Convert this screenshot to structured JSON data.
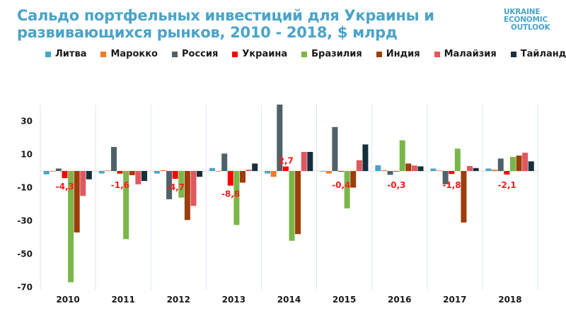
{
  "header": {
    "title_line1": "Сальдо портфельных инвестиций для Украины и",
    "title_line2": "развивающихся рынков, 2010 - 2018, $ млрд",
    "logo_lines": [
      "UKRAINE",
      "ECONOMIC",
      "OUTLOOK"
    ]
  },
  "chart_data": {
    "type": "bar",
    "title": "Сальдо портфельных инвестиций для Украины и развивающихся рынков, 2010 - 2018, $ млрд",
    "xlabel": "",
    "ylabel": "",
    "categories": [
      "2010",
      "2011",
      "2012",
      "2013",
      "2014",
      "2015",
      "2016",
      "2017",
      "2018"
    ],
    "ylim": [
      -70,
      40
    ],
    "yticks": [
      30,
      10,
      -10,
      -30,
      -50,
      -70
    ],
    "ytick_labels": [
      "30",
      "10",
      "-10",
      "-30",
      "-50",
      "-70"
    ],
    "grid": "vertical category separators",
    "legend_position": "top",
    "series": [
      {
        "name": "Литва",
        "color": "#4ba3c7",
        "values": [
          -2,
          -1.5,
          -1.5,
          1.8,
          -1.5,
          -0.2,
          3.5,
          1.5,
          1.5
        ]
      },
      {
        "name": "Марокко",
        "color": "#f07b29",
        "values": [
          -0.3,
          0.3,
          0.5,
          -0.2,
          -3.5,
          -1.5,
          0.5,
          0.3,
          0.8
        ]
      },
      {
        "name": "Россия",
        "color": "#4f6169",
        "values": [
          1.5,
          14.5,
          -17,
          10.5,
          40,
          26.5,
          -2.3,
          -8,
          7.5
        ]
      },
      {
        "name": "Украина",
        "color": "#ff0000",
        "values": [
          -4.3,
          -1.6,
          -4.7,
          -8.8,
          2.7,
          -0.4,
          -0.3,
          -1.8,
          -2.1
        ]
      },
      {
        "name": "Бразилия",
        "color": "#7ab648",
        "values": [
          -67,
          -41,
          -16,
          -32.5,
          -42,
          -22.5,
          18.5,
          13.5,
          8.5
        ]
      },
      {
        "name": "Индия",
        "color": "#9c3d0b",
        "values": [
          -37,
          -2.5,
          -29.5,
          -7,
          -38,
          -10,
          4.5,
          -31,
          9.3
        ]
      },
      {
        "name": "Малайзия",
        "color": "#e0585f",
        "values": [
          -15,
          -8,
          -21,
          0.8,
          11.5,
          6.5,
          3.3,
          3,
          11
        ]
      },
      {
        "name": "Тайланд",
        "color": "#15303d",
        "values": [
          -5,
          -6,
          -3.5,
          4.5,
          11.5,
          16,
          2.8,
          1.8,
          5.8
        ]
      }
    ],
    "annotations": {
      "series": "Украина",
      "labels": [
        "-4,3",
        "-1,6",
        "-4,7",
        "-8,8",
        "2,7",
        "-0,4",
        "-0,3",
        "-1,8",
        "-2,1"
      ]
    }
  }
}
